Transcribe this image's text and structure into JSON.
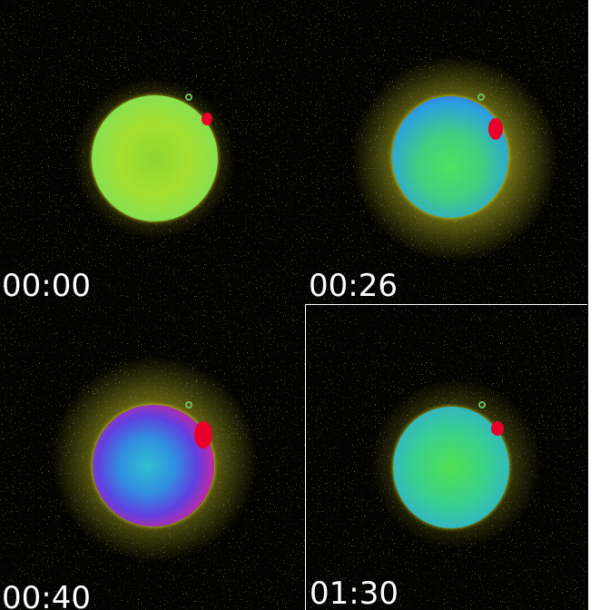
{
  "panels": [
    {
      "timestamp": "00:00"
    },
    {
      "timestamp": "00:26"
    },
    {
      "timestamp": "00:40"
    },
    {
      "timestamp": "01:30"
    }
  ]
}
